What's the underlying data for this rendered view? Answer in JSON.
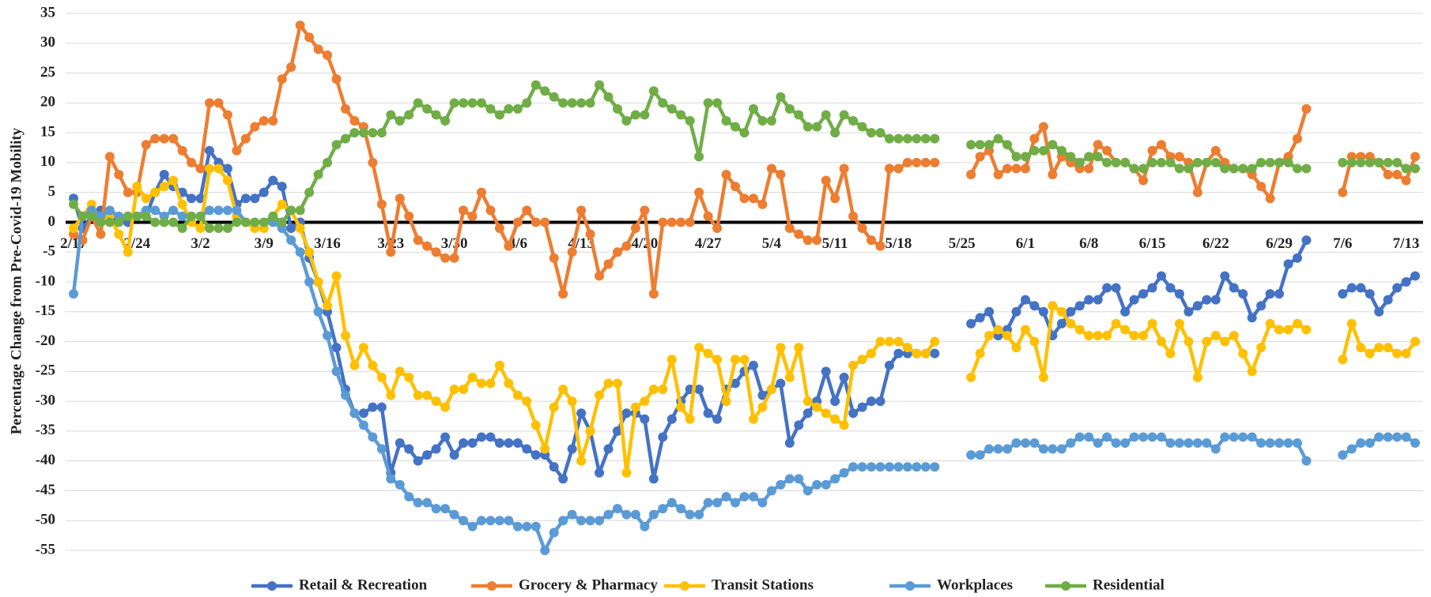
{
  "chart_data": {
    "type": "line",
    "y_label": "Percentage Change from Pre-Covid-19 Mobility",
    "categories": [
      "2/17",
      null,
      null,
      null,
      null,
      null,
      null,
      "2/24",
      null,
      null,
      null,
      null,
      null,
      null,
      "3/2",
      null,
      null,
      null,
      null,
      null,
      null,
      "3/9",
      null,
      null,
      null,
      null,
      null,
      null,
      "3/16",
      null,
      null,
      null,
      null,
      null,
      null,
      "3/23",
      null,
      null,
      null,
      null,
      null,
      null,
      "3/30",
      null,
      null,
      null,
      null,
      null,
      null,
      "4/6",
      null,
      null,
      null,
      null,
      null,
      null,
      "4/13",
      null,
      null,
      null,
      null,
      null,
      null,
      "4/20",
      null,
      null,
      null,
      null,
      null,
      null,
      "4/27",
      null,
      null,
      null,
      null,
      null,
      null,
      "5/4",
      null,
      null,
      null,
      null,
      null,
      null,
      "5/11",
      null,
      null,
      null,
      null,
      null,
      null,
      "5/18",
      null,
      null,
      null,
      null,
      null,
      null,
      "5/25",
      null,
      null,
      null,
      null,
      null,
      null,
      "6/1",
      null,
      null,
      null,
      null,
      null,
      null,
      "6/8",
      null,
      null,
      null,
      null,
      null,
      null,
      "6/15",
      null,
      null,
      null,
      null,
      null,
      null,
      "6/22",
      null,
      null,
      null,
      null,
      null,
      null,
      "6/29",
      null,
      null,
      null,
      null,
      null,
      null,
      "7/6",
      null,
      null,
      null,
      null,
      null,
      null,
      "7/13",
      null
    ],
    "series": [
      {
        "name": "Retail & Recreation",
        "color": "#4472c4",
        "values": [
          4,
          -1,
          1,
          2,
          1,
          0,
          0,
          1,
          1,
          5,
          8,
          6,
          5,
          4,
          4,
          12,
          10,
          9,
          3,
          4,
          4,
          5,
          7,
          6,
          -1,
          0,
          -6,
          -10,
          -15,
          -21,
          -28,
          -32,
          -32,
          -31,
          -31,
          -42,
          -37,
          -38,
          -40,
          -39,
          -38,
          -36,
          -39,
          -37,
          -37,
          -36,
          -36,
          -37,
          -37,
          -37,
          -38,
          -39,
          -39,
          -41,
          -43,
          -38,
          -32,
          -35,
          -42,
          -38,
          -35,
          -32,
          -32,
          -33,
          -43,
          -36,
          -33,
          -30,
          -28,
          -28,
          -32,
          -33,
          -28,
          -27,
          -25,
          -24,
          -29,
          -28,
          -27,
          -37,
          -34,
          -32,
          -30,
          -25,
          -30,
          -26,
          -32,
          -31,
          -30,
          -30,
          -24,
          -22,
          -22,
          -22,
          -22,
          -22,
          null,
          null,
          null,
          -17,
          -16,
          -15,
          -19,
          -18,
          -15,
          -13,
          -14,
          -15,
          -19,
          -17,
          -15,
          -14,
          -13,
          -13,
          -11,
          -11,
          -15,
          -13,
          -12,
          -11,
          -9,
          -11,
          -12,
          -15,
          -14,
          -13,
          -13,
          -9,
          -11,
          -12,
          -16,
          -14,
          -12,
          -12,
          -7,
          -6,
          -3,
          null,
          null,
          null,
          -12,
          -11,
          -11,
          -12,
          -15,
          -13,
          -11,
          -10,
          -9
        ]
      },
      {
        "name": "Grocery & Pharmacy",
        "color": "#ed7d31",
        "values": [
          -2,
          -3,
          1,
          -2,
          11,
          8,
          5,
          5,
          13,
          14,
          14,
          14,
          12,
          10,
          9,
          20,
          20,
          18,
          12,
          14,
          16,
          17,
          17,
          24,
          26,
          33,
          31,
          29,
          28,
          24,
          19,
          17,
          16,
          10,
          3,
          -5,
          4,
          1,
          -3,
          -4,
          -5,
          -6,
          -6,
          2,
          1,
          5,
          2,
          -1,
          -4,
          0,
          2,
          0,
          0,
          -6,
          -12,
          -5,
          2,
          -2,
          -9,
          -7,
          -5,
          -4,
          -1,
          2,
          -12,
          0,
          0,
          0,
          0,
          5,
          1,
          -1,
          8,
          6,
          4,
          4,
          3,
          9,
          8,
          -1,
          -2,
          -3,
          -3,
          7,
          4,
          9,
          1,
          -1,
          -3,
          -4,
          9,
          9,
          10,
          10,
          10,
          10,
          null,
          null,
          null,
          8,
          11,
          12,
          8,
          9,
          9,
          9,
          14,
          16,
          8,
          11,
          10,
          9,
          9,
          13,
          12,
          10,
          10,
          9,
          7,
          12,
          13,
          11,
          11,
          10,
          5,
          10,
          12,
          10,
          9,
          9,
          8,
          6,
          4,
          10,
          11,
          14,
          19,
          null,
          null,
          null,
          5,
          11,
          11,
          11,
          10,
          8,
          8,
          7,
          11
        ]
      },
      {
        "name": "Transit Stations",
        "color": "#ffc000",
        "values": [
          -1,
          1,
          3,
          0,
          1,
          -2,
          -5,
          6,
          4,
          5,
          6,
          7,
          3,
          0,
          -1,
          9,
          9,
          7,
          1,
          0,
          -1,
          -1,
          1,
          3,
          2,
          -1,
          -5,
          -10,
          -14,
          -9,
          -19,
          -24,
          -21,
          -24,
          -26,
          -29,
          -25,
          -26,
          -29,
          -29,
          -30,
          -31,
          -28,
          -28,
          -26,
          -27,
          -27,
          -24,
          -27,
          -29,
          -30,
          -34,
          -38,
          -31,
          -28,
          -30,
          -40,
          -35,
          -29,
          -27,
          -27,
          -42,
          -31,
          -30,
          -28,
          -28,
          -23,
          -31,
          -33,
          -21,
          -22,
          -23,
          -30,
          -23,
          -23,
          -33,
          -31,
          -28,
          -21,
          -26,
          -21,
          -30,
          -31,
          -32,
          -33,
          -34,
          -24,
          -23,
          -22,
          -20,
          -20,
          -20,
          -21,
          -22,
          -22,
          -20,
          null,
          null,
          null,
          -26,
          -22,
          -19,
          -18,
          -19,
          -21,
          -18,
          -20,
          -26,
          -14,
          -15,
          -17,
          -18,
          -19,
          -19,
          -19,
          -17,
          -18,
          -19,
          -19,
          -17,
          -20,
          -22,
          -17,
          -20,
          -26,
          -20,
          -19,
          -20,
          -19,
          -22,
          -25,
          -21,
          -17,
          -18,
          -18,
          -17,
          -18,
          null,
          null,
          null,
          -23,
          -17,
          -21,
          -22,
          -21,
          -21,
          -22,
          -22,
          -20
        ]
      },
      {
        "name": "Workplaces",
        "color": "#5b9bd5",
        "values": [
          -12,
          1,
          2,
          1,
          2,
          1,
          1,
          1,
          2,
          2,
          1,
          2,
          1,
          1,
          1,
          2,
          2,
          2,
          2,
          0,
          0,
          0,
          0,
          -1,
          -3,
          -5,
          -10,
          -15,
          -19,
          -25,
          -29,
          -32,
          -34,
          -36,
          -38,
          -43,
          -44,
          -46,
          -47,
          -47,
          -48,
          -48,
          -49,
          -50,
          -51,
          -50,
          -50,
          -50,
          -50,
          -51,
          -51,
          -51,
          -55,
          -52,
          -50,
          -49,
          -50,
          -50,
          -50,
          -49,
          -48,
          -49,
          -49,
          -51,
          -49,
          -48,
          -47,
          -48,
          -49,
          -49,
          -47,
          -47,
          -46,
          -47,
          -46,
          -46,
          -47,
          -45,
          -44,
          -43,
          -43,
          -45,
          -44,
          -44,
          -43,
          -42,
          -41,
          -41,
          -41,
          -41,
          -41,
          -41,
          -41,
          -41,
          -41,
          -41,
          null,
          null,
          null,
          -39,
          -39,
          -38,
          -38,
          -38,
          -37,
          -37,
          -37,
          -38,
          -38,
          -38,
          -37,
          -36,
          -36,
          -37,
          -36,
          -37,
          -37,
          -36,
          -36,
          -36,
          -36,
          -37,
          -37,
          -37,
          -37,
          -37,
          -38,
          -36,
          -36,
          -36,
          -36,
          -37,
          -37,
          -37,
          -37,
          -37,
          -40,
          null,
          null,
          null,
          -39,
          -38,
          -37,
          -37,
          -36,
          -36,
          -36,
          -36,
          -37
        ]
      },
      {
        "name": "Residential",
        "color": "#70ad47",
        "values": [
          3,
          1,
          1,
          0,
          0,
          0,
          1,
          1,
          1,
          0,
          0,
          0,
          -1,
          1,
          1,
          -1,
          -1,
          -1,
          0,
          0,
          0,
          0,
          1,
          0,
          2,
          2,
          5,
          8,
          10,
          13,
          14,
          15,
          15,
          15,
          15,
          18,
          17,
          18,
          20,
          19,
          18,
          17,
          20,
          20,
          20,
          20,
          19,
          18,
          19,
          19,
          20,
          23,
          22,
          21,
          20,
          20,
          20,
          20,
          23,
          21,
          19,
          17,
          18,
          18,
          22,
          20,
          19,
          18,
          17,
          11,
          20,
          20,
          17,
          16,
          15,
          19,
          17,
          17,
          21,
          19,
          18,
          16,
          16,
          18,
          15,
          18,
          17,
          16,
          15,
          15,
          14,
          14,
          14,
          14,
          14,
          14,
          null,
          null,
          null,
          13,
          13,
          13,
          14,
          13,
          11,
          11,
          12,
          12,
          13,
          12,
          11,
          10,
          11,
          11,
          10,
          10,
          10,
          9,
          9,
          10,
          10,
          10,
          9,
          9,
          10,
          10,
          10,
          9,
          9,
          9,
          9,
          10,
          10,
          10,
          10,
          9,
          9,
          null,
          null,
          null,
          10,
          10,
          10,
          10,
          10,
          10,
          10,
          9,
          9
        ]
      }
    ],
    "ylim": [
      -55,
      35
    ],
    "yticks": [
      -55,
      -50,
      -45,
      -40,
      -35,
      -30,
      -25,
      -20,
      -15,
      -10,
      -5,
      0,
      5,
      10,
      15,
      20,
      25,
      30,
      35
    ],
    "grid": true,
    "legend": "bottom"
  }
}
